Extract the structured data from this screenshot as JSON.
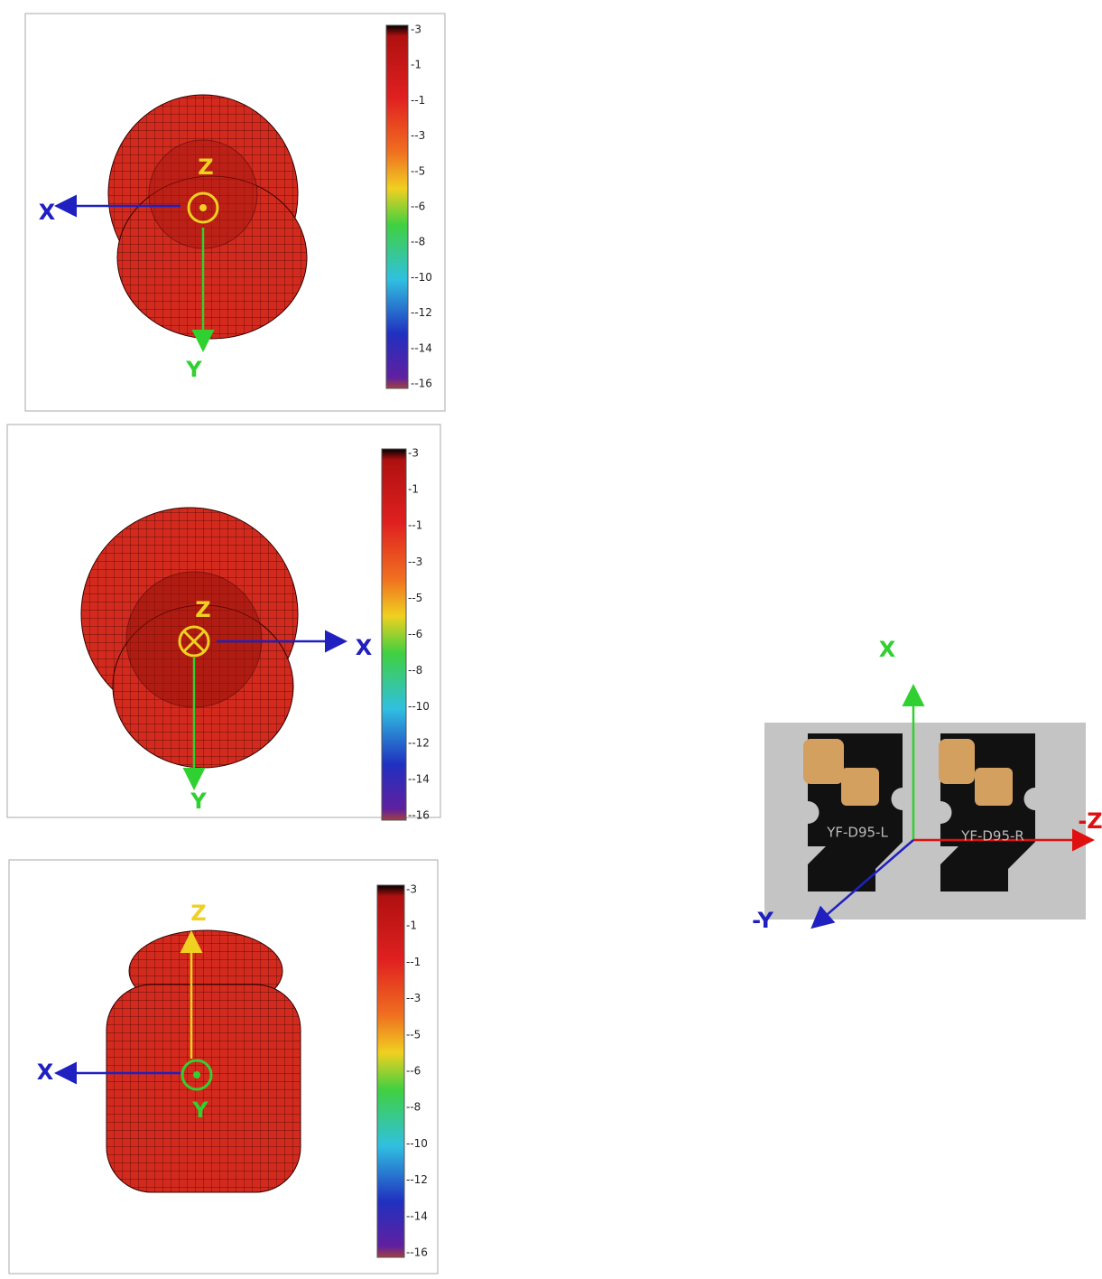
{
  "panels": [
    {
      "colorbar_labels": [
        "-3",
        "-1",
        "--1",
        "--3",
        "--5",
        "--6",
        "--8",
        "--10",
        "--12",
        "--14",
        "--16"
      ],
      "axis_labels": [
        "Z",
        "X",
        "Y"
      ]
    },
    {
      "colorbar_labels": [
        "-3",
        "-1",
        "--1",
        "--3",
        "--5",
        "--6",
        "--8",
        "--10",
        "--12",
        "--14",
        "--16"
      ],
      "axis_labels": [
        "Z",
        "X",
        "Y"
      ]
    },
    {
      "colorbar_labels": [
        "-3",
        "-1",
        "--1",
        "--3",
        "--5",
        "--6",
        "--8",
        "--10",
        "--12",
        "--14",
        "--16"
      ],
      "axis_labels": [
        "Z",
        "X",
        "Y"
      ]
    }
  ],
  "photo": {
    "board_labels": [
      "YF-D95-L",
      "YF-D95-R"
    ],
    "axis_labels": [
      "X",
      "-Y",
      "-Z"
    ]
  }
}
